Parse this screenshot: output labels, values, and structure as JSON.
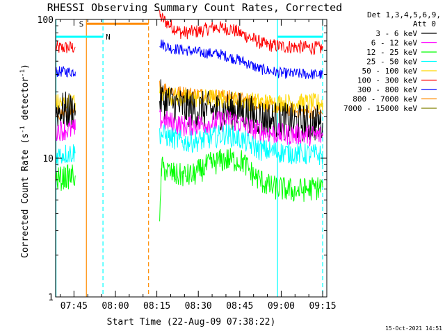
{
  "chart_data": {
    "type": "line",
    "title": "RHESSI Observing Summary Count Rates, Corrected",
    "xlabel": "Start Time (22-Aug-09 07:38:22)",
    "ylabel_parts": {
      "main": "Corrected Count Rate (s",
      "sup1": "-1",
      "mid": " detector",
      "sup2": "-1",
      "end": ")"
    },
    "y_scale": "log",
    "ylim": [
      1,
      100
    ],
    "y_ticks": [
      {
        "value": 1,
        "label": "1"
      },
      {
        "value": 10,
        "label": "10"
      },
      {
        "value": 100,
        "label": "100"
      }
    ],
    "xlim": [
      "07:38:22",
      "09:16:30"
    ],
    "x_ticks": [
      {
        "time": "07:45",
        "label": "07:45"
      },
      {
        "time": "08:00",
        "label": "08:00"
      },
      {
        "time": "08:15",
        "label": "08:15"
      },
      {
        "time": "08:30",
        "label": "08:30"
      },
      {
        "time": "08:45",
        "label": "08:45"
      },
      {
        "time": "09:00",
        "label": "09:00"
      },
      {
        "time": "09:15",
        "label": "09:15"
      }
    ],
    "legend": {
      "placement": "top-right",
      "header": [
        "Det 1,3,4,5,6,9,",
        "Att 0"
      ],
      "entries": [
        {
          "label": "3 - 6 keV",
          "color": "#000000"
        },
        {
          "label": "6 - 12 keV",
          "color": "#ff00ff"
        },
        {
          "label": "12 - 25 keV",
          "color": "#00ff00"
        },
        {
          "label": "25 - 50 keV",
          "color": "#00ffff"
        },
        {
          "label": "50 - 100 keV",
          "color": "#ffd700"
        },
        {
          "label": "100 - 300 keV",
          "color": "#ff0000"
        },
        {
          "label": "300 - 800 keV",
          "color": "#0000ff"
        },
        {
          "label": "800 - 7000 keV",
          "color": "#ff8c00"
        },
        {
          "label": "7000 - 15000 keV",
          "color": "#808000"
        }
      ]
    },
    "series": [
      {
        "color": "#ff0000",
        "noise": 0.05,
        "segments": [
          {
            "points": [
              [
                "07:38:22",
                62
              ],
              [
                "07:45:30",
                63
              ]
            ]
          },
          {
            "points": [
              [
                "08:16:00",
                105
              ],
              [
                "08:20",
                90
              ],
              [
                "08:24",
                80
              ],
              [
                "08:30",
                82
              ],
              [
                "08:36",
                88
              ],
              [
                "08:42",
                85
              ],
              [
                "08:48",
                75
              ],
              [
                "08:54",
                66
              ],
              [
                "09:00",
                64
              ],
              [
                "09:15:00",
                62
              ]
            ]
          }
        ]
      },
      {
        "color": "#0000ff",
        "noise": 0.04,
        "segments": [
          {
            "points": [
              [
                "07:38:22",
                42
              ],
              [
                "07:45:30",
                42
              ]
            ]
          },
          {
            "points": [
              [
                "08:16:00",
                68
              ],
              [
                "08:20",
                62
              ],
              [
                "08:25",
                60
              ],
              [
                "08:30",
                58
              ],
              [
                "08:38",
                56
              ],
              [
                "08:46",
                50
              ],
              [
                "08:52",
                44
              ],
              [
                "09:00",
                41
              ],
              [
                "09:15:00",
                40
              ]
            ]
          }
        ]
      },
      {
        "color": "#ff8c00",
        "noise": 0.05,
        "segments": [
          {
            "points": [
              [
                "07:38:22",
                21
              ],
              [
                "07:45:30",
                21
              ]
            ]
          },
          {
            "points": [
              [
                "08:16:00",
                33
              ],
              [
                "08:22",
                30
              ],
              [
                "08:30",
                29
              ],
              [
                "08:40",
                28
              ],
              [
                "08:48",
                26
              ],
              [
                "08:55",
                24
              ],
              [
                "09:05",
                22
              ],
              [
                "09:15:00",
                21
              ]
            ]
          }
        ]
      },
      {
        "color": "#ffd700",
        "noise": 0.07,
        "segments": [
          {
            "points": [
              [
                "07:38:22",
                25
              ],
              [
                "07:45:30",
                25
              ]
            ]
          },
          {
            "points": [
              [
                "08:16:00",
                29
              ],
              [
                "08:25",
                27
              ],
              [
                "08:35",
                27
              ],
              [
                "08:45",
                26
              ],
              [
                "08:55",
                25
              ],
              [
                "09:15:00",
                25
              ]
            ]
          }
        ]
      },
      {
        "color": "#000000",
        "noise": 0.14,
        "segments": [
          {
            "points": [
              [
                "07:38:22",
                22
              ],
              [
                "07:45:30",
                22
              ]
            ]
          },
          {
            "points": [
              [
                "08:16:00",
                27
              ],
              [
                "08:25",
                23
              ],
              [
                "08:35",
                22
              ],
              [
                "08:45",
                22
              ],
              [
                "08:55",
                19
              ],
              [
                "09:05",
                18
              ],
              [
                "09:15:00",
                18
              ]
            ]
          }
        ]
      },
      {
        "color": "#ff00ff",
        "noise": 0.08,
        "segments": [
          {
            "points": [
              [
                "07:38:22",
                16
              ],
              [
                "07:45:30",
                16
              ]
            ]
          },
          {
            "points": [
              [
                "08:16:00",
                19
              ],
              [
                "08:25",
                17
              ],
              [
                "08:35",
                18
              ],
              [
                "08:42",
                19
              ],
              [
                "08:50",
                16
              ],
              [
                "08:58",
                15
              ],
              [
                "09:15:00",
                14.5
              ]
            ]
          }
        ]
      },
      {
        "color": "#00ffff",
        "noise": 0.08,
        "segments": [
          {
            "points": [
              [
                "07:38:22",
                10.5
              ],
              [
                "07:45:30",
                11
              ]
            ]
          },
          {
            "points": [
              [
                "08:16:00",
                15
              ],
              [
                "08:25",
                13
              ],
              [
                "08:32",
                13.5
              ],
              [
                "08:40",
                15
              ],
              [
                "08:46",
                13.5
              ],
              [
                "08:52",
                11.5
              ],
              [
                "09:00",
                11
              ],
              [
                "09:15:00",
                10.5
              ]
            ]
          }
        ]
      },
      {
        "color": "#00ff00",
        "noise": 0.09,
        "segments": [
          {
            "points": [
              [
                "07:38:22",
                7
              ],
              [
                "07:45:30",
                7.5
              ]
            ]
          },
          {
            "points": [
              [
                "08:16:00",
                3
              ],
              [
                "08:16:40",
                8.5
              ],
              [
                "08:22",
                7.5
              ],
              [
                "08:28",
                7.5
              ],
              [
                "08:34",
                9
              ],
              [
                "08:40",
                9.8
              ],
              [
                "08:46",
                9.5
              ],
              [
                "08:50",
                7.5
              ],
              [
                "08:56",
                6.2
              ],
              [
                "09:05",
                5.8
              ],
              [
                "09:15:00",
                6.2
              ]
            ]
          }
        ]
      }
    ],
    "annotations": {
      "saa": {
        "label": "S",
        "start": "07:49:30",
        "end": "08:12:00",
        "value": 93,
        "color": "#ff8c00"
      },
      "night": {
        "label": "N",
        "color": "#00ffff",
        "value": 75,
        "bars": [
          {
            "start": "07:38:22",
            "end": "07:55:30"
          },
          {
            "start": "08:58:40",
            "end": "09:15:00"
          }
        ]
      },
      "vlines": [
        {
          "time": "07:38:30",
          "style": "solid",
          "color": "#00ffff"
        },
        {
          "time": "07:49:30",
          "style": "solid",
          "color": "#ff8c00"
        },
        {
          "time": "07:55:30",
          "style": "dashed",
          "color": "#00ffff"
        },
        {
          "time": "08:12:00",
          "style": "dashed",
          "color": "#ff8c00"
        },
        {
          "time": "08:58:40",
          "style": "solid",
          "color": "#00ffff"
        },
        {
          "time": "09:15:00",
          "style": "dashed",
          "color": "#00ffff"
        }
      ]
    },
    "footer": "15-Oct-2021 14:51"
  }
}
